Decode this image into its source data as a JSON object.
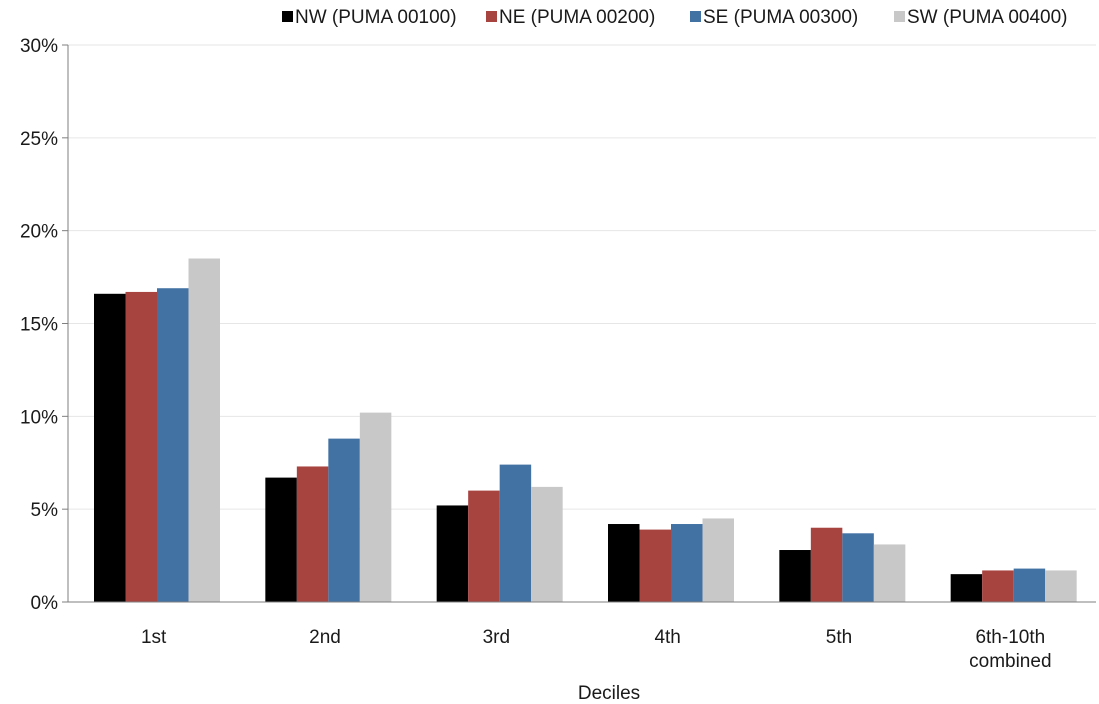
{
  "chart_data": {
    "type": "bar",
    "title": "",
    "xlabel": "Deciles",
    "ylabel": "",
    "categories": [
      "1st",
      "2nd",
      "3rd",
      "4th",
      "5th",
      "6th-10th combined"
    ],
    "category_lines": [
      [
        "1st"
      ],
      [
        "2nd"
      ],
      [
        "3rd"
      ],
      [
        "4th"
      ],
      [
        "5th"
      ],
      [
        "6th-10th",
        "combined"
      ]
    ],
    "series": [
      {
        "name": "NW (PUMA 00100)",
        "color": "#000000",
        "values": [
          16.6,
          6.7,
          5.2,
          4.2,
          2.8,
          1.5
        ]
      },
      {
        "name": "NE (PUMA 00200)",
        "color": "#a84440",
        "values": [
          16.7,
          7.3,
          6.0,
          3.9,
          4.0,
          1.7
        ]
      },
      {
        "name": "SE (PUMA 00300)",
        "color": "#4272a4",
        "values": [
          16.9,
          8.8,
          7.4,
          4.2,
          3.7,
          1.8
        ]
      },
      {
        "name": "SW (PUMA 00400)",
        "color": "#c8c8c8",
        "values": [
          18.5,
          10.2,
          6.2,
          4.5,
          3.1,
          1.7
        ]
      }
    ],
    "ylim": [
      0,
      30
    ],
    "yticks": [
      0,
      5,
      10,
      15,
      20,
      25,
      30
    ],
    "ytick_labels": [
      "0%",
      "5%",
      "10%",
      "15%",
      "20%",
      "25%",
      "30%"
    ],
    "y_unit": "%",
    "grid": true,
    "legend_position": "top-right"
  }
}
